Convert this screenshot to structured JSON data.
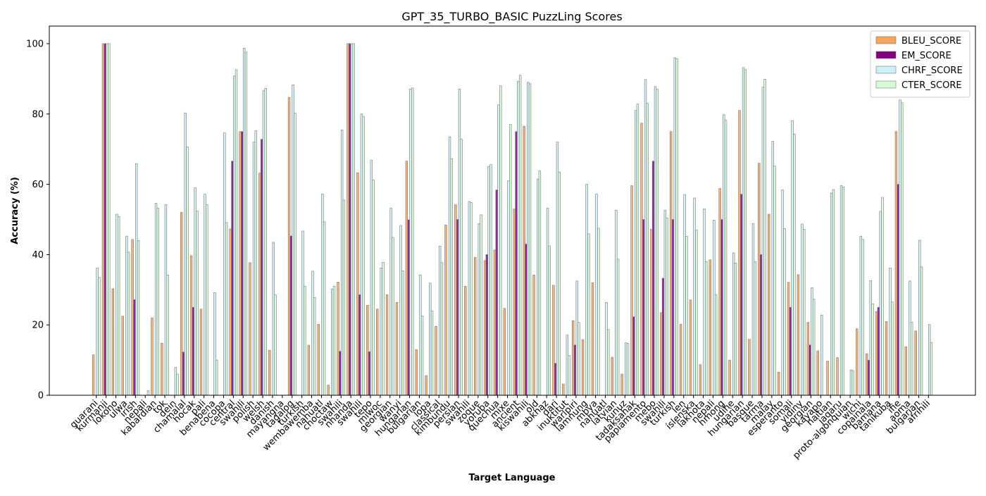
{
  "chart_data": {
    "type": "bar",
    "title": "GPT_35_TURBO_BASIC PuzzLing Scores",
    "x_label": "Target Language",
    "y_label": "Accuracy (%)",
    "categories": [
      "guarani",
      "kurmanji",
      "lokono",
      "ulwa",
      "irish",
      "nepali",
      "kabardian",
      "tok",
      "dein",
      "chamalal",
      "hocak",
      "pali",
      "benabena",
      "cocopa",
      "central",
      "swahili",
      "polish",
      "welsh",
      "danish",
      "mayangna",
      "tagalog",
      "turkish",
      "wembawemba",
      "nahuatl",
      "choctaw",
      "swahili",
      "nhanda",
      "swahili",
      "tepo",
      "miwoc",
      "georgian",
      "wanyi",
      "hungarian",
      "bulgarian",
      "lopa",
      "classical",
      "kimbundu",
      "persian",
      "swahili",
      "zoque",
      "yoruba",
      "quechua",
      "mixe",
      "ancient",
      "kiswahili",
      "old",
      "abkhaz",
      "dari",
      "inuktitut",
      "warlpiri",
      "lamnung",
      "mbya",
      "nahuatl",
      "latvian",
      "kunuz",
      "tadaksahak",
      "papiamento",
      "mebo",
      "swahili",
      "turkish",
      "len",
      "íslenska",
      "lakhota",
      "nepali",
      "hmong",
      "udihe",
      "hungarian",
      "basque",
      "tarma",
      "malay",
      "esperanto",
      "somali",
      "yidiny",
      "georgian",
      "kayapo",
      "haitian",
      "jaqaru",
      "proto-algonquian",
      "wichi",
      "copainala",
      "bamana",
      "tanikuba",
      "ifie",
      "aoma",
      "bulgarian",
      "afrihili"
    ],
    "series": [
      {
        "name": "BLEU_SCORE",
        "color": "#f6a55c",
        "values": [
          11.5,
          100,
          30.3,
          22.5,
          44.3,
          0,
          22,
          14.8,
          0,
          52,
          39.7,
          24.5,
          0,
          0,
          47.3,
          75,
          37.7,
          63.2,
          12.8,
          0,
          84.7,
          0,
          14.2,
          20.2,
          2.9,
          32.2,
          100,
          63.3,
          25.6,
          24.5,
          28.6,
          26.4,
          66.6,
          13,
          5.6,
          19.6,
          48.4,
          54.2,
          31,
          39.2,
          38.3,
          41.3,
          24.7,
          53,
          76.5,
          34.2,
          0,
          31.3,
          3.2,
          21.2,
          15.8,
          32,
          0,
          10.8,
          6,
          59.6,
          77.4,
          47.2,
          23.5,
          75,
          20.2,
          27.1,
          8.7,
          38.5,
          58.8,
          10,
          81,
          15.9,
          66,
          51.5,
          6.6,
          32.1,
          34.3,
          20.7,
          12.6,
          9.7,
          10.7,
          0,
          18.9,
          11.8,
          23.8,
          21,
          75,
          13.8,
          18.3,
          0
        ]
      },
      {
        "name": "EM_SCORE",
        "color": "#800080",
        "values": [
          0,
          100,
          0,
          0,
          27.2,
          0,
          0,
          0,
          0,
          12.3,
          25,
          0,
          0,
          0,
          66.6,
          75,
          0,
          72.8,
          0,
          0,
          45.3,
          0,
          0,
          0,
          0,
          12.5,
          100,
          28.6,
          12.4,
          0,
          0,
          0,
          49.9,
          0,
          0,
          0,
          0,
          50,
          0,
          0,
          40,
          58.4,
          0,
          75,
          43,
          0,
          0,
          9.1,
          0,
          14.3,
          0,
          0,
          0,
          0,
          0,
          22.3,
          50,
          66.6,
          33.3,
          50,
          0,
          0,
          0,
          0,
          50,
          0,
          57.2,
          0,
          40,
          0,
          0,
          25,
          0,
          14.3,
          0,
          0,
          0,
          0,
          0,
          10,
          25,
          0,
          60,
          0,
          0,
          0
        ]
      },
      {
        "name": "CHRF_SCORE",
        "color": "#cdf1f8",
        "values": [
          36.2,
          100,
          51.5,
          45.2,
          65.9,
          0,
          54.6,
          54.2,
          7.9,
          80.3,
          59,
          57.2,
          29.2,
          74.6,
          90.8,
          98.7,
          72,
          86.6,
          43.5,
          0,
          88.3,
          46.7,
          35.3,
          57.2,
          30.2,
          75.5,
          100,
          80,
          66.8,
          36.2,
          53.2,
          48.3,
          87.1,
          34.2,
          31.9,
          42.4,
          73.5,
          87.1,
          55.1,
          48.8,
          65.1,
          82.6,
          61,
          89.3,
          89,
          61.5,
          53.2,
          72,
          17.1,
          32.5,
          60,
          57.2,
          26.4,
          52.6,
          14.9,
          81,
          89.8,
          87.8,
          52.6,
          96,
          57.1,
          56.1,
          53,
          49.8,
          79.8,
          40.5,
          93.2,
          48.8,
          87.6,
          72.2,
          58.4,
          78.1,
          48.7,
          30.6,
          22.8,
          57.5,
          59.6,
          7.2,
          45.2,
          32.6,
          52.3,
          36.2,
          84,
          32.5,
          44.1,
          20.1
        ]
      },
      {
        "name": "CTER_SCORE",
        "color": "#d6fbd6",
        "values": [
          33.5,
          100,
          50.8,
          40.7,
          44,
          1.3,
          53.2,
          34.2,
          6,
          70.6,
          52.4,
          54.2,
          10,
          49.1,
          92.6,
          97.6,
          75.2,
          87.3,
          28.5,
          0,
          80.2,
          31,
          27.8,
          49.3,
          31,
          55.5,
          100,
          79.2,
          61.2,
          37.8,
          44.9,
          35.4,
          87.4,
          22.6,
          24,
          37.7,
          67.3,
          72.8,
          54.8,
          51.3,
          65.6,
          88,
          77,
          91,
          88.6,
          63.8,
          42.5,
          63.5,
          11.3,
          20.7,
          45.9,
          47.5,
          18.7,
          38.7,
          14.7,
          82.8,
          83,
          87,
          50.4,
          95.7,
          45.2,
          47,
          38,
          28.6,
          78.2,
          37.6,
          92.6,
          38,
          89.9,
          65.2,
          47.4,
          74.3,
          47.2,
          27.3,
          0,
          58.5,
          59.2,
          7,
          44.3,
          26,
          56.3,
          26.5,
          83.2,
          20.8,
          36.5,
          15
        ]
      }
    ],
    "ylim": [
      0,
      105
    ],
    "yticks": [
      0,
      20,
      40,
      60,
      80,
      100
    ],
    "legend": "upper right"
  }
}
